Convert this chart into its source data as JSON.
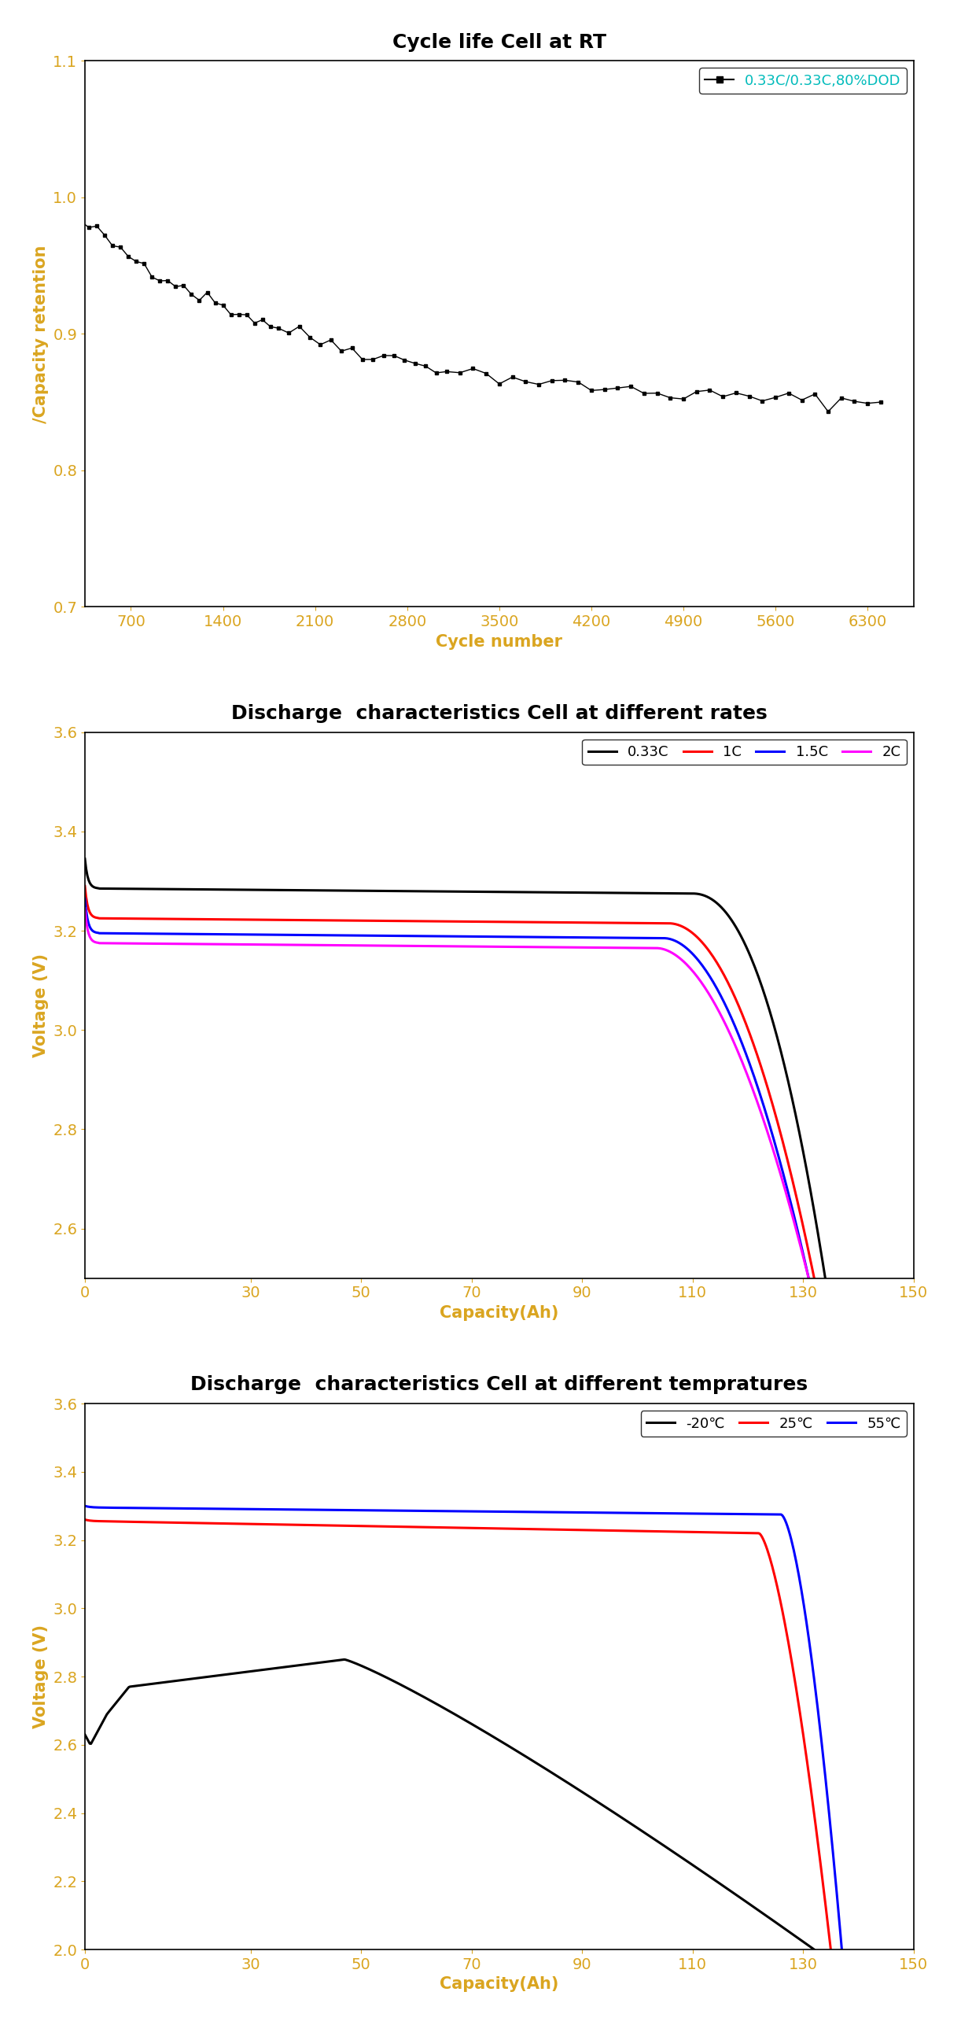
{
  "plot1": {
    "title": "Cycle life Cell at RT",
    "xlabel": "Cycle number",
    "ylabel": "/Capacity retention",
    "xlim": [
      350,
      6650
    ],
    "ylim": [
      0.7,
      1.1
    ],
    "xticks": [
      700,
      1400,
      2100,
      2800,
      3500,
      4200,
      4900,
      5600,
      6300
    ],
    "yticks": [
      0.7,
      0.8,
      0.9,
      1.0,
      1.1
    ],
    "legend_label": "0.33C/0.33C,80%DOD",
    "legend_color": "#00BBBB",
    "axis_label_color": "#DAA520",
    "tick_color": "#DAA520",
    "data_color": "black",
    "title_fontsize": 18,
    "label_fontsize": 15,
    "tick_fontsize": 14
  },
  "plot2": {
    "title": "Discharge  characteristics Cell at different rates",
    "xlabel": "Capacity(Ah)",
    "ylabel": "Voltage (V)",
    "xlim": [
      0,
      150
    ],
    "ylim": [
      2.5,
      3.6
    ],
    "xticks": [
      0,
      30,
      50,
      70,
      90,
      110,
      130,
      150
    ],
    "yticks": [
      2.6,
      2.8,
      3.0,
      3.2,
      3.4,
      3.6
    ],
    "axis_label_color": "#DAA520",
    "tick_color": "#DAA520",
    "title_fontsize": 18,
    "label_fontsize": 15,
    "tick_fontsize": 14
  },
  "plot3": {
    "title": "Discharge  characteristics Cell at different tempratures",
    "xlabel": "Capacity(Ah)",
    "ylabel": "Voltage (V)",
    "xlim": [
      0,
      150
    ],
    "ylim": [
      2.0,
      3.6
    ],
    "xticks": [
      0,
      30,
      50,
      70,
      90,
      110,
      130,
      150
    ],
    "yticks": [
      2.0,
      2.2,
      2.4,
      2.6,
      2.8,
      3.0,
      3.2,
      3.4,
      3.6
    ],
    "axis_label_color": "#DAA520",
    "tick_color": "#DAA520",
    "title_fontsize": 18,
    "label_fontsize": 15,
    "tick_fontsize": 14
  }
}
